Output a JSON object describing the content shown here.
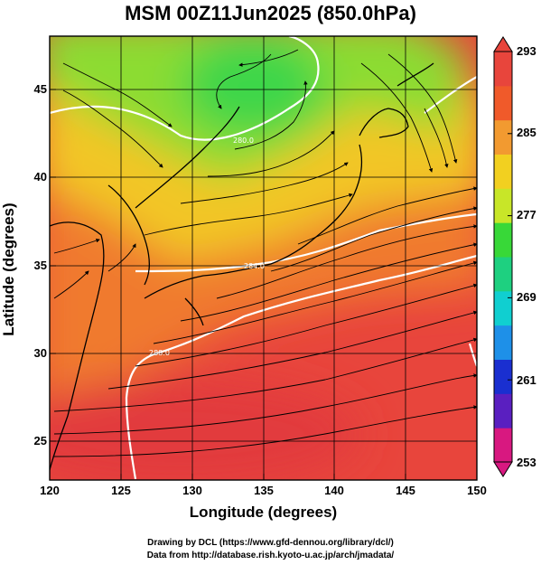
{
  "title": "MSM 00Z11Jun2025 (850.0hPa)",
  "xaxis": {
    "label": "Longitude (degrees)",
    "ticks": [
      "120",
      "125",
      "130",
      "135",
      "140",
      "145",
      "150"
    ],
    "range": [
      120,
      150
    ]
  },
  "yaxis": {
    "label": "Latitude  (degrees)",
    "ticks": [
      "25",
      "30",
      "35",
      "40",
      "45"
    ],
    "range": [
      22.4,
      47.6
    ]
  },
  "colorbar": {
    "ticks": [
      "293",
      "285",
      "277",
      "269",
      "261",
      "253"
    ],
    "range": [
      253,
      293
    ],
    "colors": [
      "#d81880",
      "#5a1fc0",
      "#1a2fd0",
      "#1e90e8",
      "#10cfd0",
      "#1ed080",
      "#38d838",
      "#c8e628",
      "#f2d020",
      "#f29a30",
      "#f05a2a",
      "#e8453c"
    ]
  },
  "contour_labels": [
    "280.0",
    "284.0",
    "288.0"
  ],
  "credits": {
    "line1": "Drawing by DCL (https://www.gfd-dennou.org/library/dcl/)",
    "line2": "Data from http://database.rish.kyoto-u.ac.jp/arch/jmadata/"
  }
}
